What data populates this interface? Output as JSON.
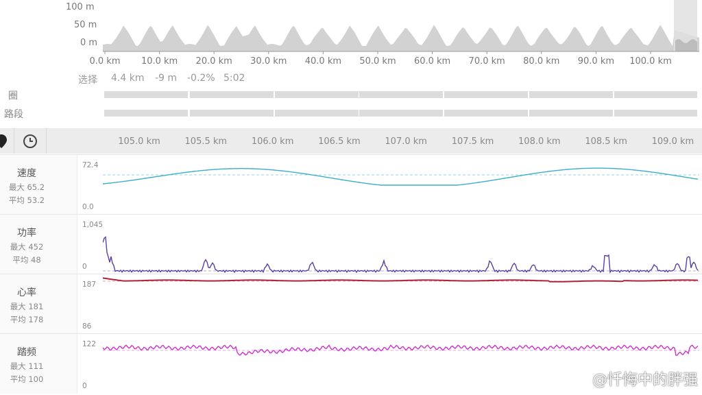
{
  "overview": {
    "y_labels": [
      "100 m",
      "50 m",
      "0 m"
    ],
    "x_labels": [
      "0.0 km",
      "10.0 km",
      "20.0 km",
      "30.0 km",
      "40.0 km",
      "50.0 km",
      "60.0 km",
      "70.0 km",
      "80.0 km",
      "90.0 km",
      "100.0 km"
    ]
  },
  "selection": {
    "label": "选择",
    "distance": "4.4 km",
    "elevation": "-9 m",
    "grade": "-0.2%",
    "time": "5:02"
  },
  "rows": {
    "laps_label": "圈",
    "segments_label": "路段"
  },
  "toolbar": {
    "icons": [
      "map-pin-icon",
      "clock-icon"
    ]
  },
  "detail_axis": [
    "105.0 km",
    "105.5 km",
    "106.0 km",
    "106.5 km",
    "107.0 km",
    "107.5 km",
    "108.0 km",
    "108.5 km",
    "109.0 km"
  ],
  "panels": [
    {
      "title": "速度",
      "max": "最大 65.2",
      "avg": "平均 53.2",
      "ymax": "72.4",
      "ymin": "0.0",
      "color": "#3aaecb"
    },
    {
      "title": "功率",
      "max": "最大 452",
      "avg": "平均 48",
      "ymax": "1,045",
      "ymin": "0",
      "color": "#5a3fa0"
    },
    {
      "title": "心率",
      "max": "最大 181",
      "avg": "平均 178",
      "ymax": "187",
      "ymin": "86",
      "color": "#b0203a"
    },
    {
      "title": "踏频",
      "max": "最大 111",
      "avg": "平均 100",
      "ymax": "122",
      "ymin": "0",
      "color": "#cc33cc"
    }
  ],
  "watermark": "@忏悔中的胖强"
}
